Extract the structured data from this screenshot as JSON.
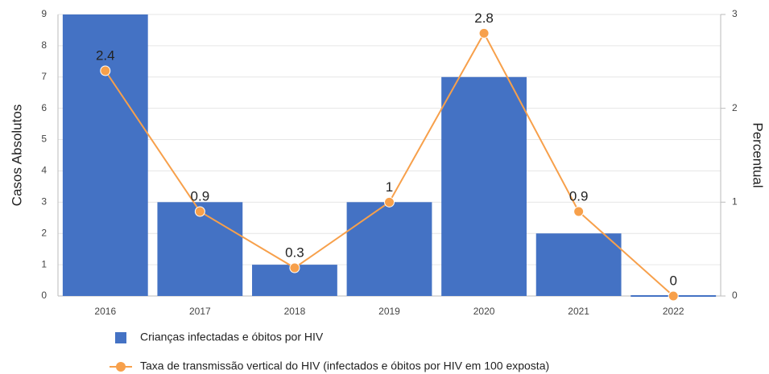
{
  "chart_data": {
    "type": "bar",
    "categories": [
      "2016",
      "2017",
      "2018",
      "2019",
      "2020",
      "2021",
      "2022"
    ],
    "series": [
      {
        "name": "Crianças infectadas e óbitos por HIV",
        "type": "bar",
        "color": "#4472c4",
        "values": [
          9,
          3,
          1,
          3,
          7,
          2,
          0
        ]
      },
      {
        "name": "Taxa de transmissão vertical do HIV (infectados e óbitos por HIV em 100 exposta)",
        "type": "line",
        "axis": "y2",
        "color": "#f7a04b",
        "values": [
          2.4,
          0.9,
          0.3,
          1,
          2.8,
          0.9,
          0
        ]
      }
    ],
    "ylabel": "Casos Absolutos",
    "y2label": "Percentual",
    "ylim": [
      0,
      9
    ],
    "yticks": [
      0,
      1,
      2,
      3,
      4,
      5,
      6,
      7,
      8,
      9
    ],
    "y2lim": [
      0,
      3
    ],
    "y2ticks": [
      0,
      1,
      2,
      3
    ],
    "grid": true,
    "legend": "bottom"
  }
}
